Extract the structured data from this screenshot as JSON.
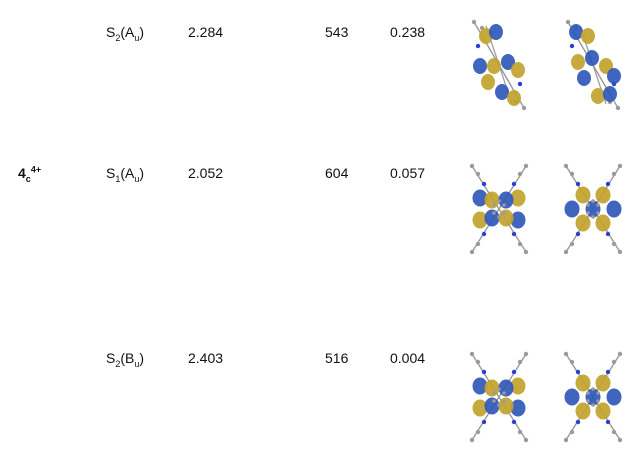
{
  "compound": {
    "main": "4",
    "sub": "c",
    "sup": "4+"
  },
  "rows": [
    {
      "state": {
        "base": "S",
        "index": "2",
        "symmetry_base": "A",
        "symmetry_sub": "u"
      },
      "energy": "2.284",
      "wavelength": "543",
      "osc": "0.238",
      "pattern": "tilted"
    },
    {
      "state": {
        "base": "S",
        "index": "1",
        "symmetry_base": "A",
        "symmetry_sub": "u"
      },
      "energy": "2.052",
      "wavelength": "604",
      "osc": "0.057",
      "pattern": "x"
    },
    {
      "state": {
        "base": "S",
        "index": "2",
        "symmetry_base": "B",
        "symmetry_sub": "u"
      },
      "energy": "2.403",
      "wavelength": "516",
      "osc": "0.004",
      "pattern": "x"
    }
  ],
  "colors": {
    "lobe_blue": "#2f58b8",
    "lobe_yellow": "#c2a32c",
    "atom_gray": "#9a9a9a",
    "nitrogen": "#2a3fd0"
  }
}
